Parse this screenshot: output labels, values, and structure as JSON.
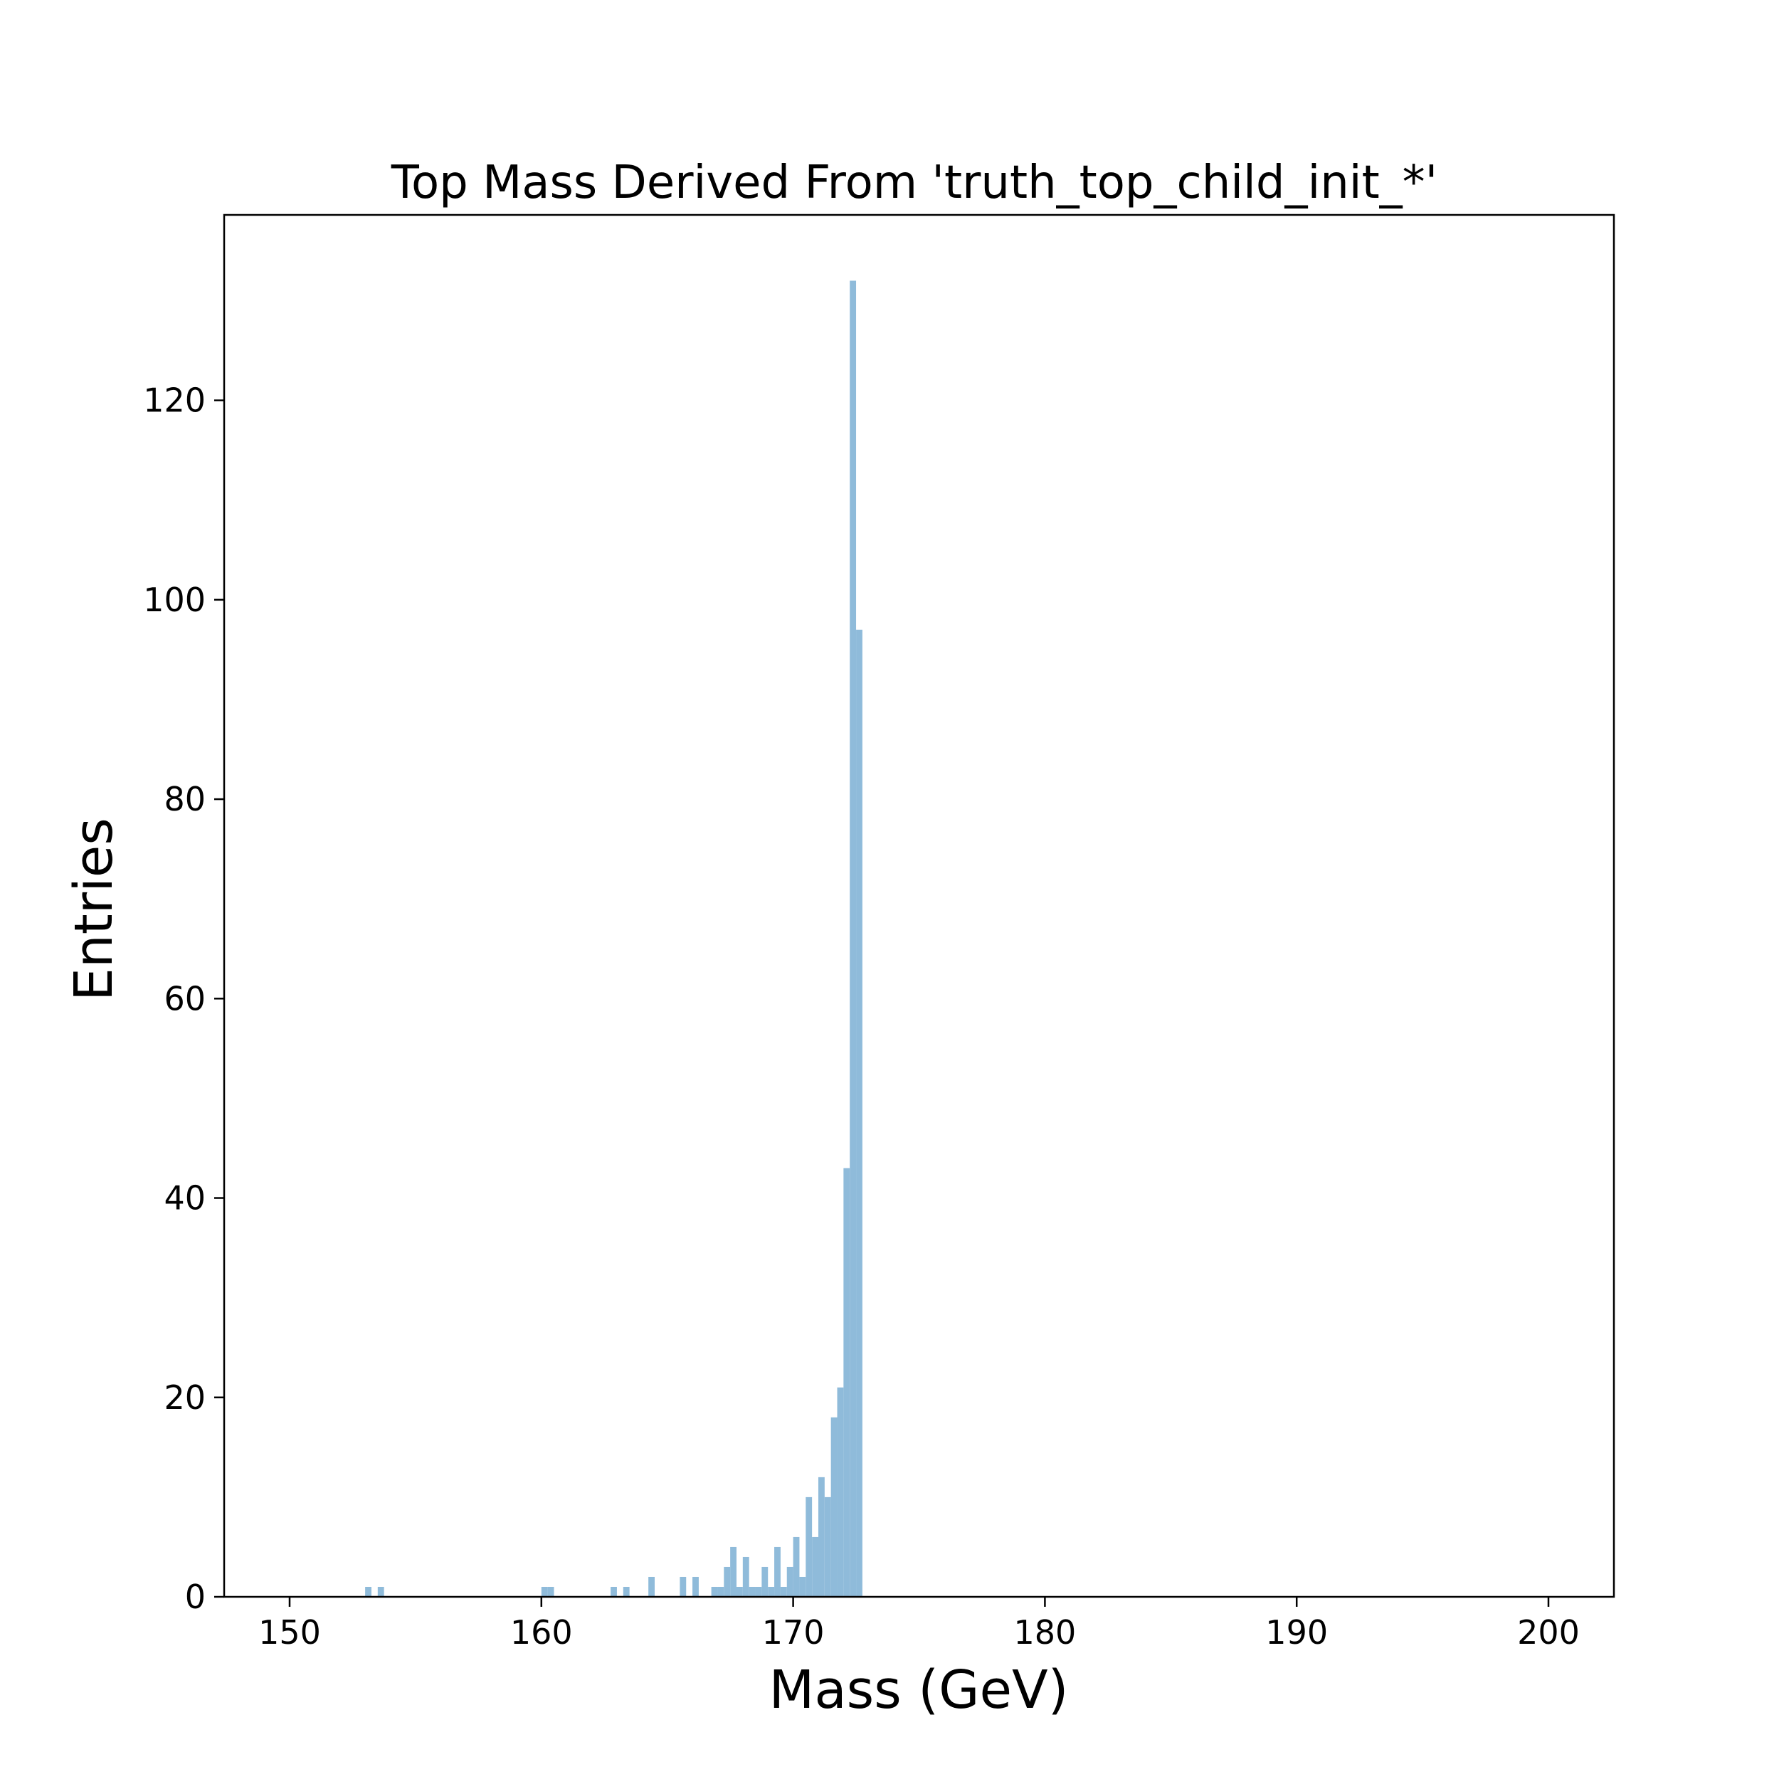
{
  "chart_data": {
    "type": "bar",
    "title": "Top Mass Derived From 'truth_top_child_init_*'",
    "xlabel": "Mass (GeV)",
    "ylabel": "Entries",
    "xlim": [
      147.4,
      202.6
    ],
    "ylim": [
      0,
      138.6
    ],
    "xticks": [
      150,
      160,
      170,
      180,
      190,
      200
    ],
    "yticks": [
      0,
      20,
      40,
      60,
      80,
      100,
      120
    ],
    "grid": false,
    "bar_color": "#8fbbda",
    "bin_width": 0.25,
    "series": [
      {
        "bin_start": [
          153.0,
          153.5,
          160.0,
          160.25,
          162.75,
          163.25,
          164.25,
          165.5,
          166.0,
          166.75,
          167.0,
          167.25,
          167.5,
          167.75,
          168.0,
          168.25,
          168.5,
          168.75,
          169.0,
          169.25,
          169.5,
          169.75,
          170.0,
          170.25,
          170.5,
          170.75,
          171.0,
          171.25,
          171.5,
          171.75,
          172.0,
          172.25,
          172.5
        ],
        "values": [
          1,
          1,
          1,
          1,
          1,
          1,
          2,
          2,
          2,
          1,
          1,
          3,
          5,
          1,
          4,
          1,
          1,
          3,
          1,
          5,
          1,
          3,
          6,
          2,
          10,
          6,
          12,
          10,
          18,
          21,
          43,
          132,
          97
        ]
      }
    ]
  }
}
